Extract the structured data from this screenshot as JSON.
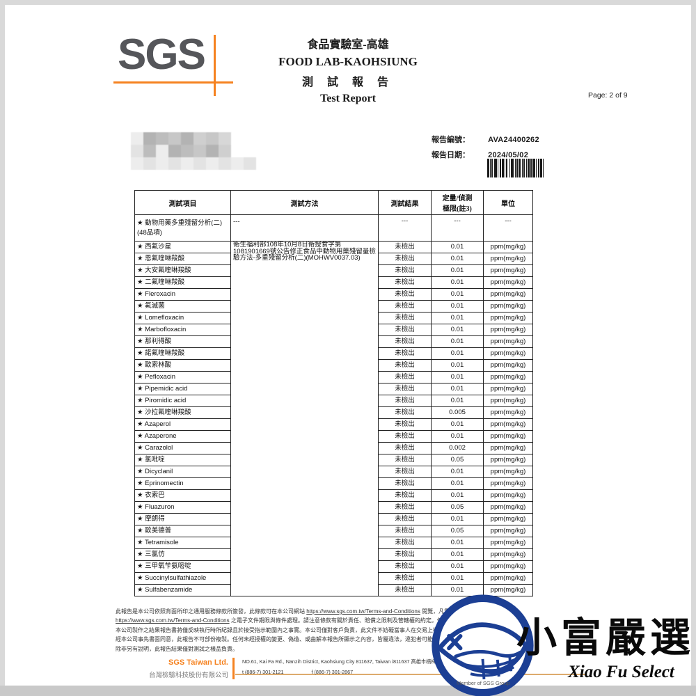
{
  "header": {
    "logo_text": "SGS",
    "lab_title_zh": "食品實驗室-高雄",
    "lab_title_en": "FOOD LAB-KAOHSIUNG",
    "report_title_zh": "測 試 報 告",
    "report_title_en": "Test Report",
    "page_label": "Page: 2 of 9"
  },
  "report_info": {
    "report_no_label": "報告編號：",
    "report_no": "AVA24400262",
    "report_date_label": "報告日期：",
    "report_date": "2024/05/02"
  },
  "table": {
    "columns": {
      "item": "測試項目",
      "method": "測試方法",
      "result": "測試結果",
      "limit1": "定量/偵測",
      "limit2": "極限(註3)",
      "unit": "單位"
    },
    "group": {
      "item": "★ 動物用藥多重殘留分析(二)(48品項)",
      "method": "---",
      "result": "---",
      "limit": "---",
      "unit": "---"
    },
    "method_text": "衛生福利部108年10月8日衛授食字第1081901669號公告修正食品中動物用藥殘留量檢驗方法-多重殘留分析(二)(MOHWV0037.03)",
    "star": "★",
    "rows": [
      {
        "item": "西氟沙星",
        "result": "未檢出",
        "limit": "0.01",
        "unit": "ppm(mg/kg)"
      },
      {
        "item": "恩氟喹啉羧酸",
        "result": "未檢出",
        "limit": "0.01",
        "unit": "ppm(mg/kg)"
      },
      {
        "item": "大安氟喹啉羧酸",
        "result": "未檢出",
        "limit": "0.01",
        "unit": "ppm(mg/kg)"
      },
      {
        "item": "二氟喹啉羧酸",
        "result": "未檢出",
        "limit": "0.01",
        "unit": "ppm(mg/kg)"
      },
      {
        "item": "Fleroxacin",
        "result": "未檢出",
        "limit": "0.01",
        "unit": "ppm(mg/kg)"
      },
      {
        "item": "氟滅菌",
        "result": "未檢出",
        "limit": "0.01",
        "unit": "ppm(mg/kg)"
      },
      {
        "item": "Lomefloxacin",
        "result": "未檢出",
        "limit": "0.01",
        "unit": "ppm(mg/kg)"
      },
      {
        "item": "Marbofloxacin",
        "result": "未檢出",
        "limit": "0.01",
        "unit": "ppm(mg/kg)"
      },
      {
        "item": "那利得酸",
        "result": "未檢出",
        "limit": "0.01",
        "unit": "ppm(mg/kg)"
      },
      {
        "item": "諾氟喹啉羧酸",
        "result": "未檢出",
        "limit": "0.01",
        "unit": "ppm(mg/kg)"
      },
      {
        "item": "歐索林酸",
        "result": "未檢出",
        "limit": "0.01",
        "unit": "ppm(mg/kg)"
      },
      {
        "item": "Pefloxacin",
        "result": "未檢出",
        "limit": "0.01",
        "unit": "ppm(mg/kg)"
      },
      {
        "item": "Pipemidic acid",
        "result": "未檢出",
        "limit": "0.01",
        "unit": "ppm(mg/kg)"
      },
      {
        "item": "Piromidic acid",
        "result": "未檢出",
        "limit": "0.01",
        "unit": "ppm(mg/kg)"
      },
      {
        "item": "沙拉氟喹啉羧酸",
        "result": "未檢出",
        "limit": "0.005",
        "unit": "ppm(mg/kg)"
      },
      {
        "item": "Azaperol",
        "result": "未檢出",
        "limit": "0.01",
        "unit": "ppm(mg/kg)"
      },
      {
        "item": "Azaperone",
        "result": "未檢出",
        "limit": "0.01",
        "unit": "ppm(mg/kg)"
      },
      {
        "item": "Carazolol",
        "result": "未檢出",
        "limit": "0.002",
        "unit": "ppm(mg/kg)"
      },
      {
        "item": "氯吡啶",
        "result": "未檢出",
        "limit": "0.05",
        "unit": "ppm(mg/kg)"
      },
      {
        "item": "Dicyclanil",
        "result": "未檢出",
        "limit": "0.01",
        "unit": "ppm(mg/kg)"
      },
      {
        "item": "Eprinomectin",
        "result": "未檢出",
        "limit": "0.01",
        "unit": "ppm(mg/kg)"
      },
      {
        "item": "衣索巴",
        "result": "未檢出",
        "limit": "0.01",
        "unit": "ppm(mg/kg)"
      },
      {
        "item": "Fluazuron",
        "result": "未檢出",
        "limit": "0.05",
        "unit": "ppm(mg/kg)"
      },
      {
        "item": "摩朗得",
        "result": "未檢出",
        "limit": "0.01",
        "unit": "ppm(mg/kg)"
      },
      {
        "item": "歐美德普",
        "result": "未檢出",
        "limit": "0.05",
        "unit": "ppm(mg/kg)"
      },
      {
        "item": "Tetramisole",
        "result": "未檢出",
        "limit": "0.01",
        "unit": "ppm(mg/kg)"
      },
      {
        "item": "三氯仿",
        "result": "未檢出",
        "limit": "0.01",
        "unit": "ppm(mg/kg)"
      },
      {
        "item": "三甲氧苄氨嘧啶",
        "result": "未檢出",
        "limit": "0.01",
        "unit": "ppm(mg/kg)"
      },
      {
        "item": "Succinylsulfathiazole",
        "result": "未檢出",
        "limit": "0.01",
        "unit": "ppm(mg/kg)"
      },
      {
        "item": "Sulfabenzamide",
        "result": "未檢出",
        "limit": "0.01",
        "unit": "ppm(mg/kg)"
      }
    ]
  },
  "disclaimer": {
    "line1_pre": "此報告是本公司依照背面所印之通用服務條款所簽發，此條款可在本公司網站 ",
    "line1_link": "https://www.sgs.com.tw/Terms-and-Conditions",
    "line1_post": " 閱覽，凡電子文件之格式依",
    "line2_link": "https://www.sgs.com.tw/Terms-and-Conditions",
    "line2_post": " 之電子文件期限與條件處理。請注意條款有關於責任、賠償之限制及管轄權的約定。任何持有此文件者，請注意",
    "line3": "本公司製作之結果報告書將僅反映執行時所紀錄且於接受指示範圍內之事實。本公司僅對客戶負責，此文件不妨礙當事人在交易上權利之行使或義務之免除。未",
    "line4": "經本公司事先書面同意，此報告不可部份複製。任何未經授權的變更、偽造、或曲解本報告所顯示之內容，皆屬違法，違犯者可能遭受法律上最嚴厲之追訴。",
    "line5": "除非另有說明，此報告結果僅對測試之樣品負責。"
  },
  "footer": {
    "company_en": "SGS Taiwan Ltd.",
    "company_zh": "台灣檢驗科技股份有限公司",
    "address": "NO.61, Kai Fa Rd., Nanzih District, Kaohsiung City 811637, Taiwan /811637 高雄市楠梓區開發路61號",
    "phone": "t (886-7) 301-2121",
    "fax": "f (886-7) 301-2867",
    "member": "Member of SGS Group"
  },
  "watermark": {
    "name_zh": "小富嚴選",
    "name_en": "Xiao Fu Select"
  },
  "colors": {
    "sgs_orange": "#f58220",
    "sgs_gray": "#55565a",
    "logo_navy": "#1c3f94",
    "footer_tan": "#ddab6d"
  }
}
